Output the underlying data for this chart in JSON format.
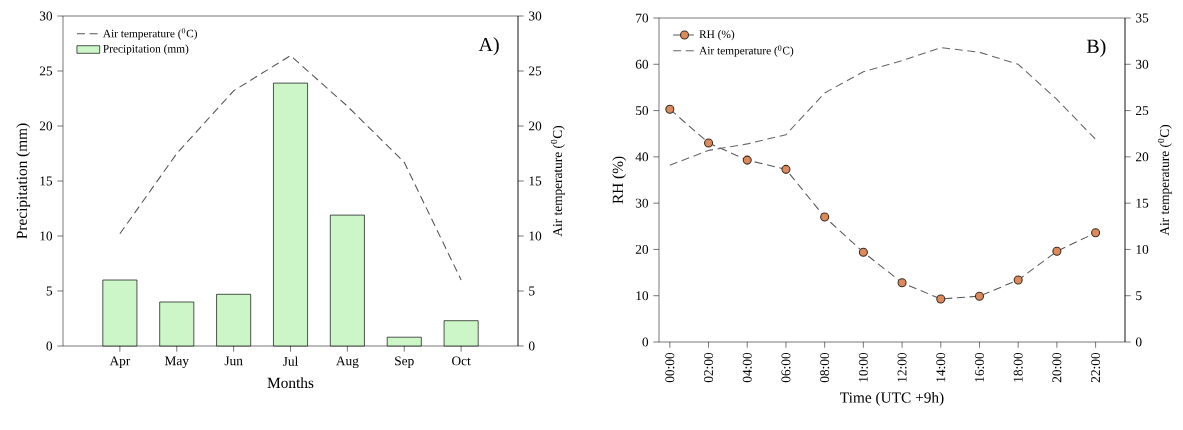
{
  "chart_data": [
    {
      "type": "bar",
      "categories": [
        "Apr",
        "May",
        "Jun",
        "Jul",
        "Aug",
        "Sep",
        "Oct"
      ],
      "xlabel": "Months",
      "ylabel": "Precipitation (mm)",
      "y2label": "Air temperature ($^{0}$C)",
      "ylim": [
        0,
        30
      ],
      "yticks": [
        0,
        5,
        10,
        15,
        20,
        25,
        30
      ],
      "y2lim": [
        0,
        30
      ],
      "y2ticks": [
        0,
        5,
        10,
        15,
        20,
        25,
        30
      ],
      "legend": "top left",
      "annotations": [
        "A)"
      ],
      "series": [
        {
          "name": "Air temperature ($^{0}$C)",
          "type": "line",
          "axis": "y2",
          "line_style": "dashed",
          "color": "#555555",
          "values": [
            10.2,
            17.5,
            23.2,
            26.4,
            21.8,
            16.7,
            6.0
          ]
        },
        {
          "name": "Precipitation (mm)",
          "type": "bar",
          "color": "#ccf5c8",
          "values": [
            6.0,
            4.0,
            4.7,
            23.9,
            11.9,
            0.8,
            2.3
          ]
        }
      ]
    },
    {
      "type": "line",
      "categories": [
        "00:00",
        "02:00",
        "04:00",
        "06:00",
        "08:00",
        "10:00",
        "12:00",
        "14:00",
        "16:00",
        "18:00",
        "20:00",
        "22:00"
      ],
      "xlabel": "Time (UTC +9h)",
      "ylabel": "RH (%)",
      "y2label": "Air temperature ($^{0}$C)",
      "ylim": [
        0,
        70
      ],
      "yticks": [
        0,
        10,
        20,
        30,
        40,
        50,
        60,
        70
      ],
      "y2lim": [
        0,
        35
      ],
      "y2ticks": [
        0,
        5,
        10,
        15,
        20,
        25,
        30,
        35
      ],
      "legend": "top left",
      "annotations": [
        "B)"
      ],
      "series": [
        {
          "name": "RH (%)",
          "line_style": "dashed",
          "marker": "circle",
          "color": "#d98b5f",
          "values": [
            50.3,
            43.0,
            39.3,
            37.3,
            27.0,
            19.4,
            12.8,
            9.3,
            9.9,
            13.4,
            19.6,
            23.6
          ]
        },
        {
          "name": "Air temperature ($^{0}$C)",
          "axis": "y2",
          "line_style": "dashed",
          "color": "#666666",
          "values": [
            19.1,
            20.7,
            21.4,
            22.4,
            26.9,
            29.2,
            30.4,
            31.8,
            31.3,
            30.0,
            26.2,
            21.9
          ]
        }
      ]
    }
  ]
}
